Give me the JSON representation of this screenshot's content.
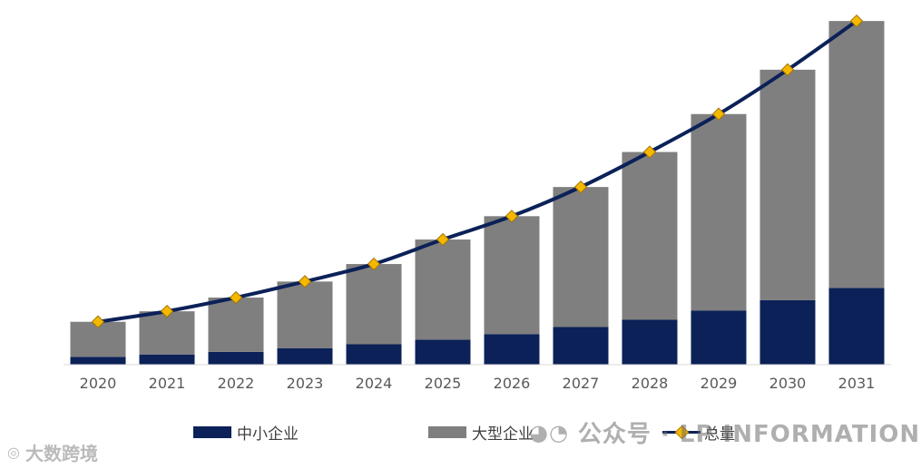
{
  "chart_data": {
    "type": "bar",
    "stacked": true,
    "categories": [
      "2020",
      "2021",
      "2022",
      "2023",
      "2024",
      "2025",
      "2026",
      "2027",
      "2028",
      "2029",
      "2030",
      "2031"
    ],
    "series": [
      {
        "name": "中小企业",
        "kind": "bar",
        "color": "#0b2158",
        "values": [
          2.7,
          3.5,
          4.4,
          5.6,
          7.0,
          8.6,
          10.5,
          12.9,
          15.4,
          18.5,
          22.1,
          26.3
        ]
      },
      {
        "name": "大型企业",
        "kind": "bar",
        "color": "#7f7f7f",
        "values": [
          12.0,
          14.8,
          18.6,
          22.9,
          27.5,
          34.3,
          40.4,
          48.0,
          57.5,
          67.4,
          79.0,
          91.5
        ]
      },
      {
        "name": "总量",
        "kind": "line",
        "color": "#0b2158",
        "marker_color": "#f5b800",
        "values": [
          14.7,
          18.3,
          23.0,
          28.5,
          34.5,
          42.9,
          50.9,
          60.9,
          72.9,
          85.9,
          101.1,
          117.8
        ]
      }
    ],
    "ylim": [
      0,
      125
    ],
    "title": "",
    "xlabel": "",
    "ylabel": "",
    "y_axis_visible": false,
    "grid": false,
    "legend_position": "bottom"
  },
  "legend": {
    "sme": "中小企业",
    "large": "大型企业",
    "total": "总量"
  },
  "watermarks": {
    "center_icon": "wechat-icon",
    "center_text": "公众号 · LP INFORMATION",
    "corner_icon": "weibo-icon",
    "corner_text": "大数跨境"
  }
}
